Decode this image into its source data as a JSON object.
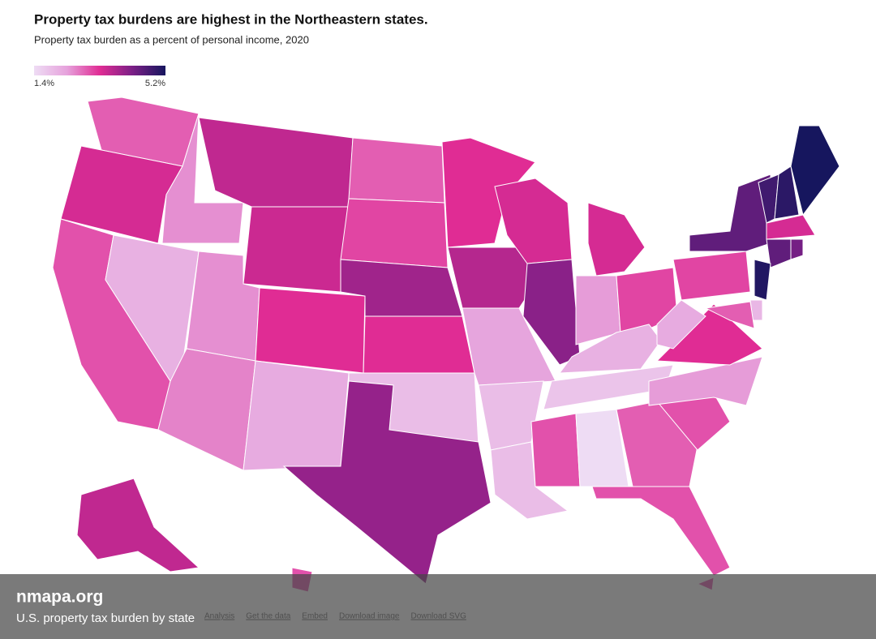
{
  "header": {
    "title": "Property tax burdens are highest in the Northeastern states.",
    "subtitle": "Property tax burden as a percent of personal income, 2020"
  },
  "legend": {
    "min": {
      "value": 1.4,
      "label": "1.4%"
    },
    "max": {
      "value": 5.2,
      "label": "5.2%"
    },
    "colors": [
      "#eedcf4",
      "#e6a2dc",
      "#e02c94",
      "#7a1f86",
      "#16165e"
    ]
  },
  "values": [
    2.9,
    3.4,
    3.0,
    2.1,
    2.5,
    3.6,
    3.5,
    2.5,
    2.6,
    3.3,
    2.2,
    2.9,
    3.1,
    3.9,
    3.3,
    1.9,
    4.0,
    3.3,
    3.7,
    2.3,
    1.9,
    1.9,
    3.4,
    4.1,
    3.4,
    2.4,
    3.1,
    2.1,
    1.8,
    3.0,
    1.4,
    2.9,
    3.0,
    3.0,
    2.4,
    3.3,
    2.2,
    3.1,
    4.5,
    4.8,
    5.0,
    5.2,
    3.4,
    4.5,
    4.3,
    5.1,
    2.0,
    2.9,
    3.6,
    3.0,
    3.0
  ],
  "footer": {
    "links": [
      "Analysis",
      "Get the data",
      "Embed",
      "Download image",
      "Download SVG"
    ]
  },
  "watermark": {
    "site": "nmapa.org",
    "caption": "U.S. property tax burden by state"
  }
}
